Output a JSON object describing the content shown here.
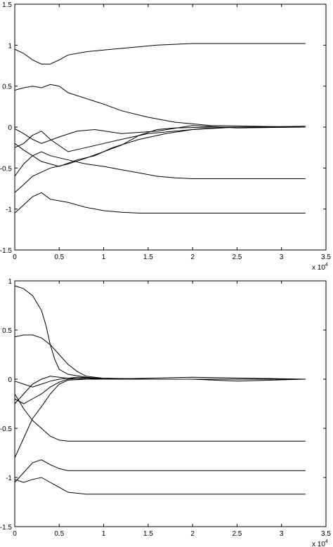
{
  "chart_data": [
    {
      "type": "line",
      "title": "",
      "xlabel": "",
      "ylabel": "",
      "x_multiplier_label": "x 10^4",
      "xlim": [
        0,
        3.5
      ],
      "ylim": [
        -1.5,
        1.5
      ],
      "x_ticks": [
        0,
        0.5,
        1,
        1.5,
        2,
        2.5,
        3,
        3.5
      ],
      "x_tick_labels": [
        "0",
        "0.5",
        "1",
        "1.5",
        "2",
        "2.5",
        "3",
        "3.5"
      ],
      "y_ticks": [
        -1.5,
        -1,
        -0.5,
        0,
        0.5,
        1,
        1.5
      ],
      "y_tick_labels": [
        "-1.5",
        "-1",
        "-0.5",
        "0",
        "0.5",
        "1",
        "1.5"
      ],
      "grid": false,
      "series": [
        {
          "x": [
            0,
            0.1,
            0.2,
            0.3,
            0.4,
            0.5,
            0.6,
            0.8,
            1.0,
            1.3,
            1.6,
            2.0,
            3.0,
            3.27
          ],
          "y": [
            0.95,
            0.9,
            0.82,
            0.77,
            0.77,
            0.82,
            0.88,
            0.92,
            0.94,
            0.97,
            1.0,
            1.02,
            1.02,
            1.02
          ]
        },
        {
          "x": [
            0,
            0.1,
            0.2,
            0.3,
            0.4,
            0.5,
            0.6,
            0.8,
            1.0,
            1.2,
            1.5,
            1.8,
            2.2,
            3.27
          ],
          "y": [
            0.45,
            0.48,
            0.5,
            0.48,
            0.52,
            0.5,
            0.42,
            0.35,
            0.28,
            0.2,
            0.12,
            0.06,
            0.02,
            0.0
          ]
        },
        {
          "x": [
            0,
            0.1,
            0.2,
            0.3,
            0.5,
            0.7,
            0.9,
            1.2,
            1.6,
            2.0,
            2.5,
            3.27
          ],
          "y": [
            -0.02,
            -0.08,
            -0.15,
            -0.2,
            -0.12,
            -0.05,
            -0.03,
            -0.08,
            -0.05,
            0.02,
            -0.01,
            0.0
          ]
        },
        {
          "x": [
            0,
            0.1,
            0.2,
            0.3,
            0.5,
            0.7,
            0.9,
            1.1,
            1.4,
            1.7,
            2.0,
            2.5,
            3.27
          ],
          "y": [
            -0.2,
            -0.28,
            -0.35,
            -0.42,
            -0.48,
            -0.4,
            -0.35,
            -0.25,
            -0.15,
            -0.08,
            -0.03,
            0.0,
            0.0
          ]
        },
        {
          "x": [
            0,
            0.1,
            0.2,
            0.3,
            0.4,
            0.6,
            0.8,
            1.0,
            1.2,
            1.5,
            1.8,
            2.1,
            2.5,
            3.27
          ],
          "y": [
            -0.25,
            -0.2,
            -0.1,
            -0.05,
            -0.15,
            -0.3,
            -0.25,
            -0.2,
            -0.15,
            -0.08,
            -0.05,
            -0.02,
            0.0,
            0.01
          ]
        },
        {
          "x": [
            0,
            0.1,
            0.2,
            0.3,
            0.4,
            0.6,
            0.8,
            1.0,
            1.2,
            1.4,
            1.6,
            1.8,
            2.2,
            3.27
          ],
          "y": [
            -0.8,
            -0.7,
            -0.6,
            -0.55,
            -0.5,
            -0.45,
            -0.38,
            -0.3,
            -0.22,
            -0.1,
            -0.03,
            -0.01,
            0.0,
            0.0
          ]
        },
        {
          "x": [
            0,
            0.1,
            0.2,
            0.3,
            0.4,
            0.6,
            0.8,
            1.0,
            1.2,
            1.4,
            1.6,
            1.8,
            2.0,
            3.27
          ],
          "y": [
            -0.6,
            -0.45,
            -0.35,
            -0.3,
            -0.35,
            -0.4,
            -0.45,
            -0.48,
            -0.52,
            -0.56,
            -0.6,
            -0.62,
            -0.63,
            -0.63
          ]
        },
        {
          "x": [
            0,
            0.1,
            0.2,
            0.3,
            0.4,
            0.6,
            0.8,
            1.0,
            1.2,
            1.4,
            1.6,
            2.0,
            3.27
          ],
          "y": [
            -1.05,
            -0.95,
            -0.85,
            -0.8,
            -0.88,
            -0.92,
            -0.98,
            -1.02,
            -1.04,
            -1.05,
            -1.05,
            -1.05,
            -1.05
          ]
        }
      ]
    },
    {
      "type": "line",
      "title": "",
      "xlabel": "",
      "ylabel": "",
      "x_multiplier_label": "x 10^4",
      "xlim": [
        0,
        3.5
      ],
      "ylim": [
        -1.5,
        1.0
      ],
      "x_ticks": [
        0,
        0.5,
        1,
        1.5,
        2,
        2.5,
        3,
        3.5
      ],
      "x_tick_labels": [
        "0",
        "0.5",
        "1",
        "1.5",
        "2",
        "2.5",
        "3",
        "3.5"
      ],
      "y_ticks": [
        -1.5,
        -1,
        -0.5,
        0,
        0.5,
        1
      ],
      "y_tick_labels": [
        "-1.5",
        "-1",
        "-0.5",
        "0",
        "0.5",
        "1"
      ],
      "grid": false,
      "series": [
        {
          "x": [
            0,
            0.1,
            0.2,
            0.3,
            0.35,
            0.4,
            0.45,
            0.5,
            0.6,
            0.8,
            1.0,
            1.5,
            3.27
          ],
          "y": [
            0.95,
            0.92,
            0.85,
            0.7,
            0.55,
            0.35,
            0.2,
            0.1,
            0.05,
            0.02,
            0.0,
            0.0,
            0.0
          ]
        },
        {
          "x": [
            0,
            0.1,
            0.2,
            0.3,
            0.4,
            0.5,
            0.6,
            0.7,
            0.8,
            1.0,
            1.5,
            3.27
          ],
          "y": [
            0.43,
            0.45,
            0.45,
            0.42,
            0.35,
            0.25,
            0.15,
            0.08,
            0.03,
            0.01,
            0.0,
            0.0
          ]
        },
        {
          "x": [
            0,
            0.1,
            0.2,
            0.3,
            0.4,
            0.5,
            0.7,
            1.0,
            1.5,
            2.0,
            2.5,
            3.27
          ],
          "y": [
            -0.02,
            -0.05,
            -0.08,
            -0.05,
            -0.02,
            0.0,
            0.02,
            0.01,
            0.0,
            0.0,
            -0.02,
            0.0
          ]
        },
        {
          "x": [
            0,
            0.1,
            0.2,
            0.3,
            0.4,
            0.5,
            0.6,
            0.8,
            1.0,
            1.5,
            2.0,
            3.27
          ],
          "y": [
            -0.2,
            -0.25,
            -0.2,
            -0.15,
            -0.08,
            -0.03,
            0.0,
            0.01,
            0.0,
            0.01,
            0.02,
            0.0
          ]
        },
        {
          "x": [
            0,
            0.1,
            0.2,
            0.3,
            0.4,
            0.5,
            0.6,
            0.8,
            1.0,
            1.5,
            3.27
          ],
          "y": [
            -0.25,
            -0.15,
            -0.05,
            0.0,
            0.03,
            0.02,
            0.01,
            0.0,
            0.0,
            0.0,
            0.0
          ]
        },
        {
          "x": [
            0,
            0.1,
            0.2,
            0.3,
            0.4,
            0.5,
            0.6,
            0.8,
            1.0,
            1.5,
            3.27
          ],
          "y": [
            -0.8,
            -0.6,
            -0.4,
            -0.28,
            -0.15,
            -0.05,
            -0.01,
            0.0,
            0.0,
            0.0,
            0.0
          ]
        },
        {
          "x": [
            0,
            0.1,
            0.2,
            0.3,
            0.4,
            0.5,
            0.6,
            0.8,
            1.0,
            3.27
          ],
          "y": [
            -0.15,
            -0.3,
            -0.42,
            -0.5,
            -0.58,
            -0.62,
            -0.63,
            -0.63,
            -0.63,
            -0.63
          ]
        },
        {
          "x": [
            0,
            0.1,
            0.2,
            0.3,
            0.4,
            0.5,
            0.6,
            0.8,
            1.0,
            3.27
          ],
          "y": [
            -1.05,
            -0.95,
            -0.85,
            -0.82,
            -0.87,
            -0.91,
            -0.93,
            -0.93,
            -0.93,
            -0.93
          ]
        },
        {
          "x": [
            0,
            0.1,
            0.2,
            0.3,
            0.4,
            0.5,
            0.6,
            0.8,
            1.0,
            3.27
          ],
          "y": [
            -1.02,
            -1.05,
            -1.02,
            -1.0,
            -1.05,
            -1.1,
            -1.15,
            -1.17,
            -1.17,
            -1.17
          ]
        }
      ]
    }
  ]
}
